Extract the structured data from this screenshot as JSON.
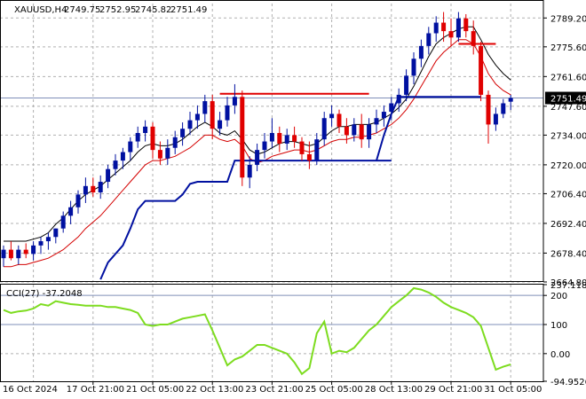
{
  "chart_data": [
    {
      "type": "candlestick",
      "header": {
        "symbol": "XAUUSD,H4",
        "open": "2749.75",
        "high": "2752.95",
        "low": "2745.82",
        "close": "2751.49"
      },
      "current_price": 2751.49,
      "current_price_label": "2751.49",
      "y_ticks": [
        "2789.20",
        "2775.60",
        "2761.60",
        "2747.60",
        "2734.00",
        "2720.00",
        "2706.40",
        "2692.40",
        "2678.40",
        "2664.80"
      ],
      "ylim": [
        2664.8,
        2796.0
      ],
      "x_ticks": [
        "16 Oct 2024",
        "17 Oct 21:00",
        "21 Oct 05:00",
        "22 Oct 13:00",
        "23 Oct 21:00",
        "25 Oct 05:00",
        "28 Oct 13:00",
        "29 Oct 21:00",
        "31 Oct 05:00"
      ],
      "x_tick_index": [
        0,
        8,
        16,
        24,
        32,
        40,
        48,
        56,
        64
      ],
      "grid": true,
      "candles": [
        [
          2676,
          2682,
          2672,
          2680
        ],
        [
          2680,
          2684,
          2675,
          2676
        ],
        [
          2676,
          2682,
          2673,
          2680
        ],
        [
          2680,
          2683,
          2676,
          2678
        ],
        [
          2678,
          2684,
          2675,
          2682
        ],
        [
          2682,
          2686,
          2678,
          2684
        ],
        [
          2684,
          2688,
          2680,
          2686
        ],
        [
          2686,
          2690,
          2683,
          2690
        ],
        [
          2690,
          2698,
          2688,
          2696
        ],
        [
          2696,
          2703,
          2692,
          2700
        ],
        [
          2700,
          2708,
          2697,
          2706
        ],
        [
          2706,
          2714,
          2702,
          2710
        ],
        [
          2710,
          2714,
          2705,
          2707
        ],
        [
          2707,
          2715,
          2704,
          2712
        ],
        [
          2712,
          2720,
          2709,
          2718
        ],
        [
          2718,
          2725,
          2715,
          2722
        ],
        [
          2722,
          2728,
          2718,
          2726
        ],
        [
          2726,
          2733,
          2722,
          2731
        ],
        [
          2731,
          2738,
          2728,
          2735
        ],
        [
          2735,
          2741,
          2731,
          2738
        ],
        [
          2738,
          2740,
          2723,
          2727
        ],
        [
          2727,
          2731,
          2720,
          2723
        ],
        [
          2723,
          2732,
          2720,
          2728
        ],
        [
          2728,
          2736,
          2725,
          2733
        ],
        [
          2733,
          2740,
          2729,
          2737
        ],
        [
          2737,
          2745,
          2734,
          2741
        ],
        [
          2741,
          2748,
          2737,
          2744
        ],
        [
          2744,
          2753,
          2740,
          2750
        ],
        [
          2750,
          2753,
          2732,
          2737
        ],
        [
          2737,
          2745,
          2734,
          2741
        ],
        [
          2741,
          2752,
          2738,
          2748
        ],
        [
          2748,
          2758,
          2744,
          2752
        ],
        [
          2752,
          2755,
          2710,
          2714
        ],
        [
          2714,
          2724,
          2709,
          2720
        ],
        [
          2720,
          2730,
          2717,
          2727
        ],
        [
          2727,
          2735,
          2723,
          2731
        ],
        [
          2731,
          2742,
          2728,
          2735
        ],
        [
          2735,
          2738,
          2726,
          2730
        ],
        [
          2730,
          2737,
          2727,
          2734
        ],
        [
          2734,
          2738,
          2728,
          2731
        ],
        [
          2731,
          2733,
          2722,
          2725
        ],
        [
          2725,
          2731,
          2718,
          2722
        ],
        [
          2722,
          2735,
          2720,
          2732
        ],
        [
          2732,
          2745,
          2729,
          2742
        ],
        [
          2742,
          2748,
          2738,
          2744
        ],
        [
          2744,
          2746,
          2735,
          2738
        ],
        [
          2738,
          2742,
          2730,
          2734
        ],
        [
          2734,
          2742,
          2731,
          2739
        ],
        [
          2739,
          2744,
          2728,
          2732
        ],
        [
          2732,
          2742,
          2728,
          2739
        ],
        [
          2739,
          2746,
          2735,
          2742
        ],
        [
          2742,
          2748,
          2738,
          2745
        ],
        [
          2745,
          2752,
          2741,
          2749
        ],
        [
          2749,
          2756,
          2745,
          2753
        ],
        [
          2753,
          2765,
          2750,
          2762
        ],
        [
          2762,
          2773,
          2758,
          2770
        ],
        [
          2770,
          2779,
          2766,
          2776
        ],
        [
          2776,
          2785,
          2772,
          2782
        ],
        [
          2782,
          2790,
          2778,
          2787
        ],
        [
          2787,
          2792,
          2778,
          2783
        ],
        [
          2783,
          2789,
          2776,
          2780
        ],
        [
          2780,
          2792,
          2778,
          2789
        ],
        [
          2789,
          2791,
          2780,
          2783
        ],
        [
          2783,
          2788,
          2772,
          2776
        ],
        [
          2776,
          2778,
          2750,
          2753
        ],
        [
          2753,
          2755,
          2730,
          2739
        ],
        [
          2739,
          2747,
          2736,
          2744
        ],
        [
          2744,
          2751,
          2742,
          2749
        ],
        [
          2749.75,
          2752.95,
          2745.82,
          2751.49
        ]
      ],
      "lines": {
        "black_ma": [
          2684,
          2684,
          2684,
          2684,
          2685,
          2686,
          2688,
          2692,
          2695,
          2699,
          2703,
          2706,
          2708,
          2710,
          2713,
          2716,
          2719,
          2722,
          2726,
          2729,
          2730,
          2729,
          2729,
          2730,
          2732,
          2735,
          2738,
          2740,
          2738,
          2735,
          2734,
          2736,
          2732,
          2727,
          2725,
          2726,
          2728,
          2730,
          2731,
          2731,
          2730,
          2729,
          2730,
          2733,
          2736,
          2738,
          2738,
          2739,
          2739,
          2739,
          2740,
          2742,
          2744,
          2747,
          2751,
          2757,
          2764,
          2771,
          2777,
          2780,
          2782,
          2784,
          2785,
          2785,
          2779,
          2772,
          2767,
          2763,
          2760
        ],
        "red_ma": [
          2672,
          2672,
          2673,
          2673,
          2674,
          2675,
          2676,
          2678,
          2680,
          2683,
          2686,
          2690,
          2693,
          2696,
          2700,
          2704,
          2708,
          2712,
          2716,
          2720,
          2722,
          2722,
          2723,
          2724,
          2726,
          2728,
          2731,
          2734,
          2734,
          2732,
          2731,
          2732,
          2729,
          2723,
          2721,
          2722,
          2724,
          2725,
          2726,
          2727,
          2727,
          2726,
          2727,
          2729,
          2731,
          2732,
          2732,
          2733,
          2733,
          2734,
          2735,
          2737,
          2739,
          2742,
          2746,
          2751,
          2757,
          2763,
          2769,
          2773,
          2776,
          2779,
          2779,
          2777,
          2771,
          2763,
          2758,
          2755,
          2753
        ],
        "blue_stop": [
          null,
          null,
          null,
          null,
          null,
          null,
          null,
          null,
          null,
          null,
          null,
          null,
          null,
          2666,
          2674,
          2678,
          2682,
          2690,
          2699,
          2703,
          2703,
          2703,
          2703,
          2703,
          2706,
          2711,
          2712,
          2712,
          2712,
          2712,
          2712,
          2722,
          2722,
          2722,
          2722,
          2722,
          2722,
          2722,
          2722,
          2722,
          2722,
          2722,
          2722,
          2722,
          2722,
          2722,
          2722,
          2722,
          2722,
          2722,
          2722,
          2722,
          2722,
          2752,
          2752,
          2752,
          2752,
          2752,
          2752,
          2752,
          2752,
          2752,
          2752,
          2752,
          2752,
          2752,
          2752,
          2752,
          2752
        ],
        "blue_stop_left": [
          null,
          null,
          null,
          null,
          null,
          null,
          null,
          null,
          null,
          null,
          null,
          null,
          null,
          null,
          null,
          null,
          null,
          null,
          null,
          null,
          null,
          null,
          null,
          null,
          null,
          null,
          null,
          null,
          null,
          null,
          null,
          null,
          null,
          null,
          null,
          null,
          null,
          null,
          null,
          null,
          null,
          null,
          null,
          null,
          null,
          null,
          null,
          null,
          null,
          null,
          2722,
          2728,
          2734,
          2740,
          2744,
          2748,
          2752,
          2752
        ],
        "red_level_1": {
          "value": 2753.5,
          "from": 29,
          "to": 49
        },
        "red_level_2": {
          "value": 2777,
          "from": 61,
          "to": 66
        }
      }
    },
    {
      "type": "line",
      "indicator_label": "CCI(27) -37.2048",
      "y_ticks": [
        "237.1183",
        "200",
        "100",
        "0.00",
        "-94.9526"
      ],
      "ylim": [
        -94.9526,
        237.1183
      ],
      "levels": [
        200,
        100
      ],
      "series": [
        {
          "values": [
            150,
            140,
            145,
            148,
            155,
            170,
            165,
            180,
            175,
            170,
            168,
            165,
            165,
            165,
            160,
            160,
            155,
            150,
            140,
            100,
            95,
            100,
            100,
            110,
            120,
            125,
            130,
            135,
            80,
            20,
            -40,
            -20,
            -10,
            10,
            30,
            30,
            20,
            10,
            0,
            -30,
            -70,
            -50,
            70,
            110,
            0,
            10,
            5,
            20,
            50,
            80,
            100,
            130,
            160,
            180,
            200,
            225,
            220,
            210,
            195,
            175,
            160,
            150,
            140,
            125,
            95,
            20,
            -55,
            -45,
            -37.2048
          ]
        }
      ]
    }
  ]
}
